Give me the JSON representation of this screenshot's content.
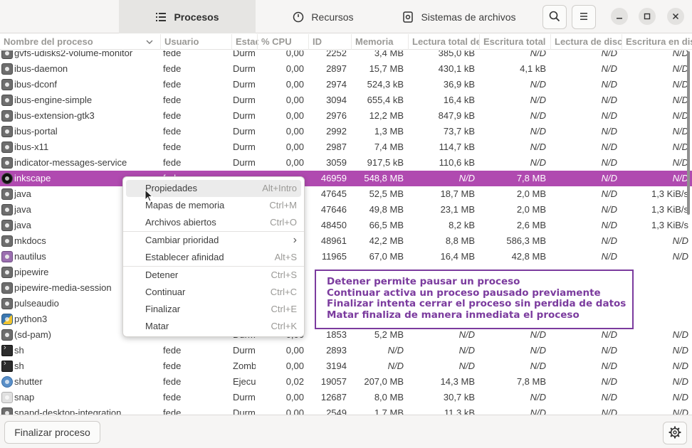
{
  "tabs": [
    {
      "label": "Procesos",
      "icon": "list-icon"
    },
    {
      "label": "Recursos",
      "icon": "clock-icon"
    },
    {
      "label": "Sistemas de archivos",
      "icon": "disk-icon"
    }
  ],
  "columns": [
    "Nombre del proceso",
    "Usuario",
    "Estado",
    "% CPU",
    "ID",
    "Memoria",
    "Lectura total de disco",
    "Escritura total",
    "Lectura de disco",
    "Escritura en disco"
  ],
  "rows": [
    {
      "name": "gvfs-udisks2-volume-monitor",
      "icon": "gear",
      "user": "fede",
      "state": "Durmiendo",
      "cpu": "0,00",
      "id": "2252",
      "mem": "3,4 MB",
      "rtot": "385,0 kB",
      "wtot": "N/D",
      "rd": "N/D",
      "wd": "N/D"
    },
    {
      "name": "ibus-daemon",
      "icon": "gear",
      "user": "fede",
      "state": "Durmiendo",
      "cpu": "0,00",
      "id": "2897",
      "mem": "15,7 MB",
      "rtot": "430,1 kB",
      "wtot": "4,1 kB",
      "rd": "N/D",
      "wd": "N/D"
    },
    {
      "name": "ibus-dconf",
      "icon": "gear",
      "user": "fede",
      "state": "Durmiendo",
      "cpu": "0,00",
      "id": "2974",
      "mem": "524,3 kB",
      "rtot": "36,9 kB",
      "wtot": "N/D",
      "rd": "N/D",
      "wd": "N/D"
    },
    {
      "name": "ibus-engine-simple",
      "icon": "gear",
      "user": "fede",
      "state": "Durmiendo",
      "cpu": "0,00",
      "id": "3094",
      "mem": "655,4 kB",
      "rtot": "16,4 kB",
      "wtot": "N/D",
      "rd": "N/D",
      "wd": "N/D"
    },
    {
      "name": "ibus-extension-gtk3",
      "icon": "gear",
      "user": "fede",
      "state": "Durmiendo",
      "cpu": "0,00",
      "id": "2976",
      "mem": "12,2 MB",
      "rtot": "847,9 kB",
      "wtot": "N/D",
      "rd": "N/D",
      "wd": "N/D"
    },
    {
      "name": "ibus-portal",
      "icon": "gear",
      "user": "fede",
      "state": "Durmiendo",
      "cpu": "0,00",
      "id": "2992",
      "mem": "1,3 MB",
      "rtot": "73,7 kB",
      "wtot": "N/D",
      "rd": "N/D",
      "wd": "N/D"
    },
    {
      "name": "ibus-x11",
      "icon": "gear",
      "user": "fede",
      "state": "Durmiendo",
      "cpu": "0,00",
      "id": "2987",
      "mem": "7,4 MB",
      "rtot": "114,7 kB",
      "wtot": "N/D",
      "rd": "N/D",
      "wd": "N/D"
    },
    {
      "name": "indicator-messages-service",
      "icon": "gear",
      "user": "fede",
      "state": "Durmiendo",
      "cpu": "0,00",
      "id": "3059",
      "mem": "917,5 kB",
      "rtot": "110,6 kB",
      "wtot": "N/D",
      "rd": "N/D",
      "wd": "N/D"
    },
    {
      "name": "inkscape",
      "icon": "ink",
      "user": "fede",
      "state": "",
      "cpu": "",
      "id": "46959",
      "mem": "548,8 MB",
      "rtot": "N/D",
      "wtot": "7,8 MB",
      "rd": "N/D",
      "wd": "N/D",
      "selected": true
    },
    {
      "name": "java",
      "icon": "gear",
      "user": "",
      "state": "",
      "cpu": "",
      "id": "47645",
      "mem": "52,5 MB",
      "rtot": "18,7 MB",
      "wtot": "2,0 MB",
      "rd": "N/D",
      "wd": "1,3 KiB/s"
    },
    {
      "name": "java",
      "icon": "gear",
      "user": "",
      "state": "",
      "cpu": "",
      "id": "47646",
      "mem": "49,8 MB",
      "rtot": "23,1 MB",
      "wtot": "2,0 MB",
      "rd": "N/D",
      "wd": "1,3 KiB/s"
    },
    {
      "name": "java",
      "icon": "gear",
      "user": "",
      "state": "",
      "cpu": "",
      "id": "48450",
      "mem": "66,5 MB",
      "rtot": "8,2 kB",
      "wtot": "2,6 MB",
      "rd": "N/D",
      "wd": "1,3 KiB/s"
    },
    {
      "name": "mkdocs",
      "icon": "gear",
      "user": "",
      "state": "",
      "cpu": "",
      "id": "48961",
      "mem": "42,2 MB",
      "rtot": "8,8 MB",
      "wtot": "586,3 MB",
      "rd": "N/D",
      "wd": "N/D"
    },
    {
      "name": "nautilus",
      "icon": "folder",
      "user": "",
      "state": "",
      "cpu": "",
      "id": "11965",
      "mem": "67,0 MB",
      "rtot": "16,4 MB",
      "wtot": "42,8 MB",
      "rd": "N/D",
      "wd": "N/D"
    },
    {
      "name": "pipewire",
      "icon": "gear",
      "user": "",
      "state": "",
      "cpu": "",
      "id": "",
      "mem": "",
      "rtot": "",
      "wtot": "",
      "rd": "",
      "wd": ""
    },
    {
      "name": "pipewire-media-session",
      "icon": "gear",
      "user": "",
      "state": "",
      "cpu": "",
      "id": "",
      "mem": "",
      "rtot": "",
      "wtot": "",
      "rd": "",
      "wd": ""
    },
    {
      "name": "pulseaudio",
      "icon": "gear",
      "user": "",
      "state": "",
      "cpu": "",
      "id": "",
      "mem": "",
      "rtot": "",
      "wtot": "",
      "rd": "",
      "wd": ""
    },
    {
      "name": "python3",
      "icon": "py",
      "user": "",
      "state": "",
      "cpu": "",
      "id": "",
      "mem": "",
      "rtot": "",
      "wtot": "",
      "rd": "",
      "wd": ""
    },
    {
      "name": "(sd-pam)",
      "icon": "gear",
      "user": "",
      "state": "Durmiendo",
      "cpu": "0,00",
      "id": "1853",
      "mem": "5,2 MB",
      "rtot": "N/D",
      "wtot": "N/D",
      "rd": "N/D",
      "wd": "N/D"
    },
    {
      "name": "sh",
      "icon": "term",
      "user": "fede",
      "state": "Durmiendo",
      "cpu": "0,00",
      "id": "2893",
      "mem": "N/D",
      "rtot": "N/D",
      "wtot": "N/D",
      "rd": "N/D",
      "wd": "N/D"
    },
    {
      "name": "sh",
      "icon": "term",
      "user": "fede",
      "state": "Zombi",
      "cpu": "0,00",
      "id": "3194",
      "mem": "N/D",
      "rtot": "N/D",
      "wtot": "N/D",
      "rd": "N/D",
      "wd": "N/D"
    },
    {
      "name": "shutter",
      "icon": "shutter",
      "user": "fede",
      "state": "Ejecutando",
      "cpu": "0,02",
      "id": "19057",
      "mem": "207,0 MB",
      "rtot": "14,3 MB",
      "wtot": "7,8 MB",
      "rd": "N/D",
      "wd": "N/D"
    },
    {
      "name": "snap",
      "icon": "snap",
      "user": "fede",
      "state": "Durmiendo",
      "cpu": "0,00",
      "id": "12687",
      "mem": "8,0 MB",
      "rtot": "30,7 kB",
      "wtot": "N/D",
      "rd": "N/D",
      "wd": "N/D"
    },
    {
      "name": "snapd-desktop-integration",
      "icon": "gear",
      "user": "fede",
      "state": "Durmiendo",
      "cpu": "0,00",
      "id": "2549",
      "mem": "1,7 MB",
      "rtot": "11,3 kB",
      "wtot": "N/D",
      "rd": "N/D",
      "wd": "N/D"
    }
  ],
  "context_menu": [
    {
      "label": "Propiedades",
      "accel": "Alt+Intro"
    },
    {
      "label": "Mapas de memoria",
      "accel": "Ctrl+M"
    },
    {
      "label": "Archivos abiertos",
      "accel": "Ctrl+O"
    },
    {
      "sep": true
    },
    {
      "label": "Cambiar prioridad",
      "accel": "›"
    },
    {
      "label": "Establecer afinidad",
      "accel": "Alt+S"
    },
    {
      "sep": true
    },
    {
      "label": "Detener",
      "accel": "Ctrl+S"
    },
    {
      "label": "Continuar",
      "accel": "Ctrl+C"
    },
    {
      "label": "Finalizar",
      "accel": "Ctrl+E"
    },
    {
      "label": "Matar",
      "accel": "Ctrl+K"
    }
  ],
  "annotation": [
    "Detener permite pausar un proceso",
    "Continuar activa un proceso pausado previamente",
    "Finalizar intenta cerrar el proceso sin perdida de datos",
    "Matar finaliza de manera inmediata el proceso"
  ],
  "footer": {
    "end_button": "Finalizar proceso"
  },
  "colors": {
    "selection": "#b04ab0",
    "annotation": "#7b3b9e"
  }
}
